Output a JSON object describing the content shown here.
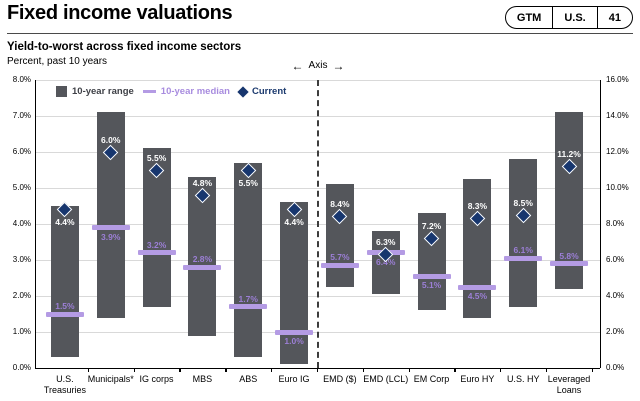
{
  "header": {
    "title": "Fixed income valuations",
    "badge": {
      "series": "GTM",
      "region": "U.S.",
      "page": "41"
    }
  },
  "chart": {
    "title": "Yield-to-worst across fixed income sectors",
    "subtitle": "Percent, past 10 years",
    "axis_note": "Axis",
    "legend": [
      {
        "key": "range",
        "label": "10-year range"
      },
      {
        "key": "median",
        "label": "10-year median"
      },
      {
        "key": "current",
        "label": "Current"
      }
    ]
  },
  "chart_data": {
    "type": "bar",
    "subtype": "floating-range-bar-with-median-and-current-markers",
    "title": "Yield-to-worst across fixed income sectors",
    "units": "percent",
    "grid": true,
    "legend_position": "top-left",
    "series_names": [
      "10-year range",
      "10-year median",
      "Current"
    ],
    "left_axis": {
      "min": 0,
      "max": 8,
      "tick_labels": [
        "8.0%",
        "7.0%",
        "6.0%",
        "5.0%",
        "4.0%",
        "3.0%",
        "2.0%",
        "1.0%",
        "0.0%"
      ]
    },
    "right_axis": {
      "min": 0,
      "max": 16,
      "tick_labels": [
        "16.0%",
        "14.0%",
        "12.0%",
        "10.0%",
        "8.0%",
        "6.0%",
        "4.0%",
        "2.0%",
        "0.0%"
      ]
    },
    "axis_divider_note": "Axis (left of dashed line uses left scale, right of dashed line uses right scale)",
    "sectors": [
      {
        "label": "U.S.\nTreasuries",
        "axis": "left",
        "range_low": 0.3,
        "range_high": 4.5,
        "median": 1.5,
        "current": 4.4,
        "current_label_below": true,
        "median_label_below": false
      },
      {
        "label": "Municipals*",
        "axis": "left",
        "range_low": 1.4,
        "range_high": 7.1,
        "median": 3.9,
        "current": 6.0,
        "current_label_below": false,
        "median_label_below": true
      },
      {
        "label": "IG corps",
        "axis": "left",
        "range_low": 1.7,
        "range_high": 6.1,
        "median": 3.2,
        "current": 5.5,
        "current_label_below": false,
        "median_label_below": false
      },
      {
        "label": "MBS",
        "axis": "left",
        "range_low": 0.9,
        "range_high": 5.3,
        "median": 2.8,
        "current": 4.8,
        "current_label_below": false,
        "median_label_below": false
      },
      {
        "label": "ABS",
        "axis": "left",
        "range_low": 0.3,
        "range_high": 5.7,
        "median": 1.7,
        "current": 5.5,
        "current_label_below": true,
        "median_label_below": false
      },
      {
        "label": "Euro IG",
        "axis": "left",
        "range_low": 0.1,
        "range_high": 4.6,
        "median": 1.0,
        "current": 4.4,
        "current_label_below": true,
        "median_label_below": true
      },
      {
        "label": "EMD ($)",
        "axis": "right",
        "range_low": 4.5,
        "range_high": 10.2,
        "median": 5.7,
        "current": 8.4,
        "current_label_below": false,
        "median_label_below": false
      },
      {
        "label": "EMD (LCL)",
        "axis": "right",
        "range_low": 4.1,
        "range_high": 7.6,
        "median": 6.4,
        "current": 6.3,
        "current_label_below": false,
        "median_label_below": true
      },
      {
        "label": "EM Corp",
        "axis": "right",
        "range_low": 3.2,
        "range_high": 8.6,
        "median": 5.1,
        "current": 7.2,
        "current_label_below": false,
        "median_label_below": true
      },
      {
        "label": "Euro HY",
        "axis": "right",
        "range_low": 2.8,
        "range_high": 10.5,
        "median": 4.5,
        "current": 8.3,
        "current_label_below": false,
        "median_label_below": true
      },
      {
        "label": "U.S. HY",
        "axis": "right",
        "range_low": 3.4,
        "range_high": 11.6,
        "median": 6.1,
        "current": 8.5,
        "current_label_below": false,
        "median_label_below": false
      },
      {
        "label": "Leveraged\nLoans",
        "axis": "right",
        "range_low": 4.4,
        "range_high": 14.2,
        "median": 5.8,
        "current": 11.2,
        "current_label_below": false,
        "median_label_below": false
      }
    ]
  },
  "colors": {
    "range_bar": "#54565b",
    "median": "#b49be4",
    "median_text": "#9c7fd6",
    "current": "#17366e",
    "current_text": "#ffffff",
    "gridline": "#d9d9d9",
    "axis": "#000000"
  }
}
